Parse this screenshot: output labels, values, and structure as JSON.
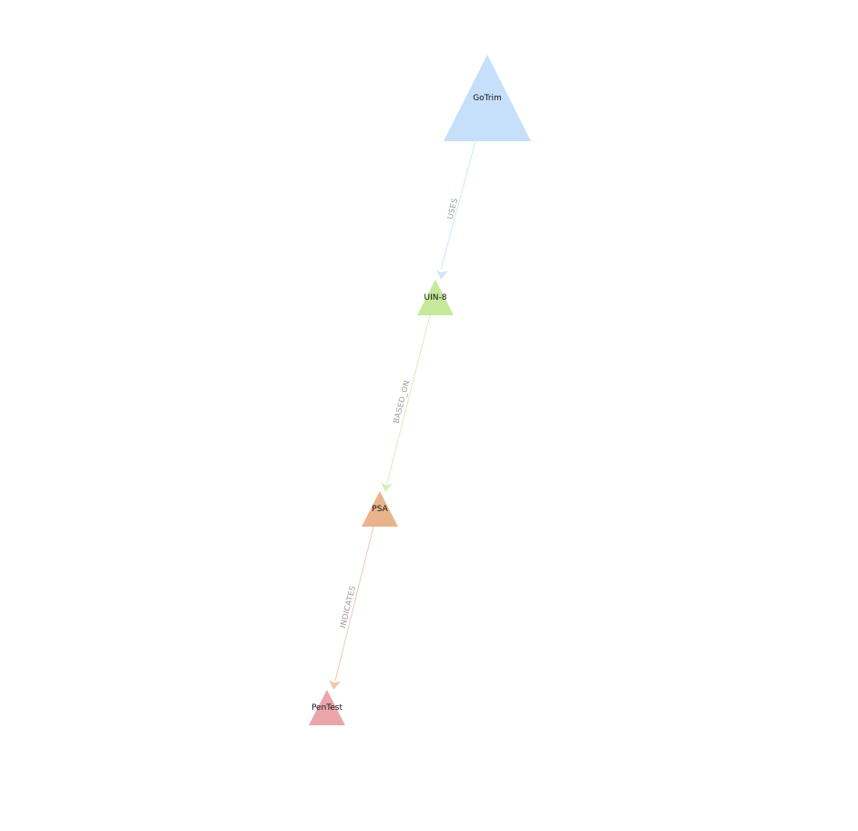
{
  "graph": {
    "nodes": [
      {
        "id": "gotrim",
        "label": "GoTrim",
        "color": "#c6dffb"
      },
      {
        "id": "uin8",
        "label": "UIN-8",
        "color": "#c6e89a"
      },
      {
        "id": "psa",
        "label": "PSA",
        "color": "#e9b48c"
      },
      {
        "id": "pentest",
        "label": "PenTest",
        "color": "#eaa5ab"
      }
    ],
    "edges": [
      {
        "from": "gotrim",
        "to": "uin8",
        "label": "USES",
        "color": "#d3e5fb"
      },
      {
        "from": "uin8",
        "to": "psa",
        "label": "BASED_ON",
        "color": "#d6efbf"
      },
      {
        "from": "psa",
        "to": "pentest",
        "label": "INDICATES",
        "color": "#f2c9ad"
      }
    ]
  }
}
